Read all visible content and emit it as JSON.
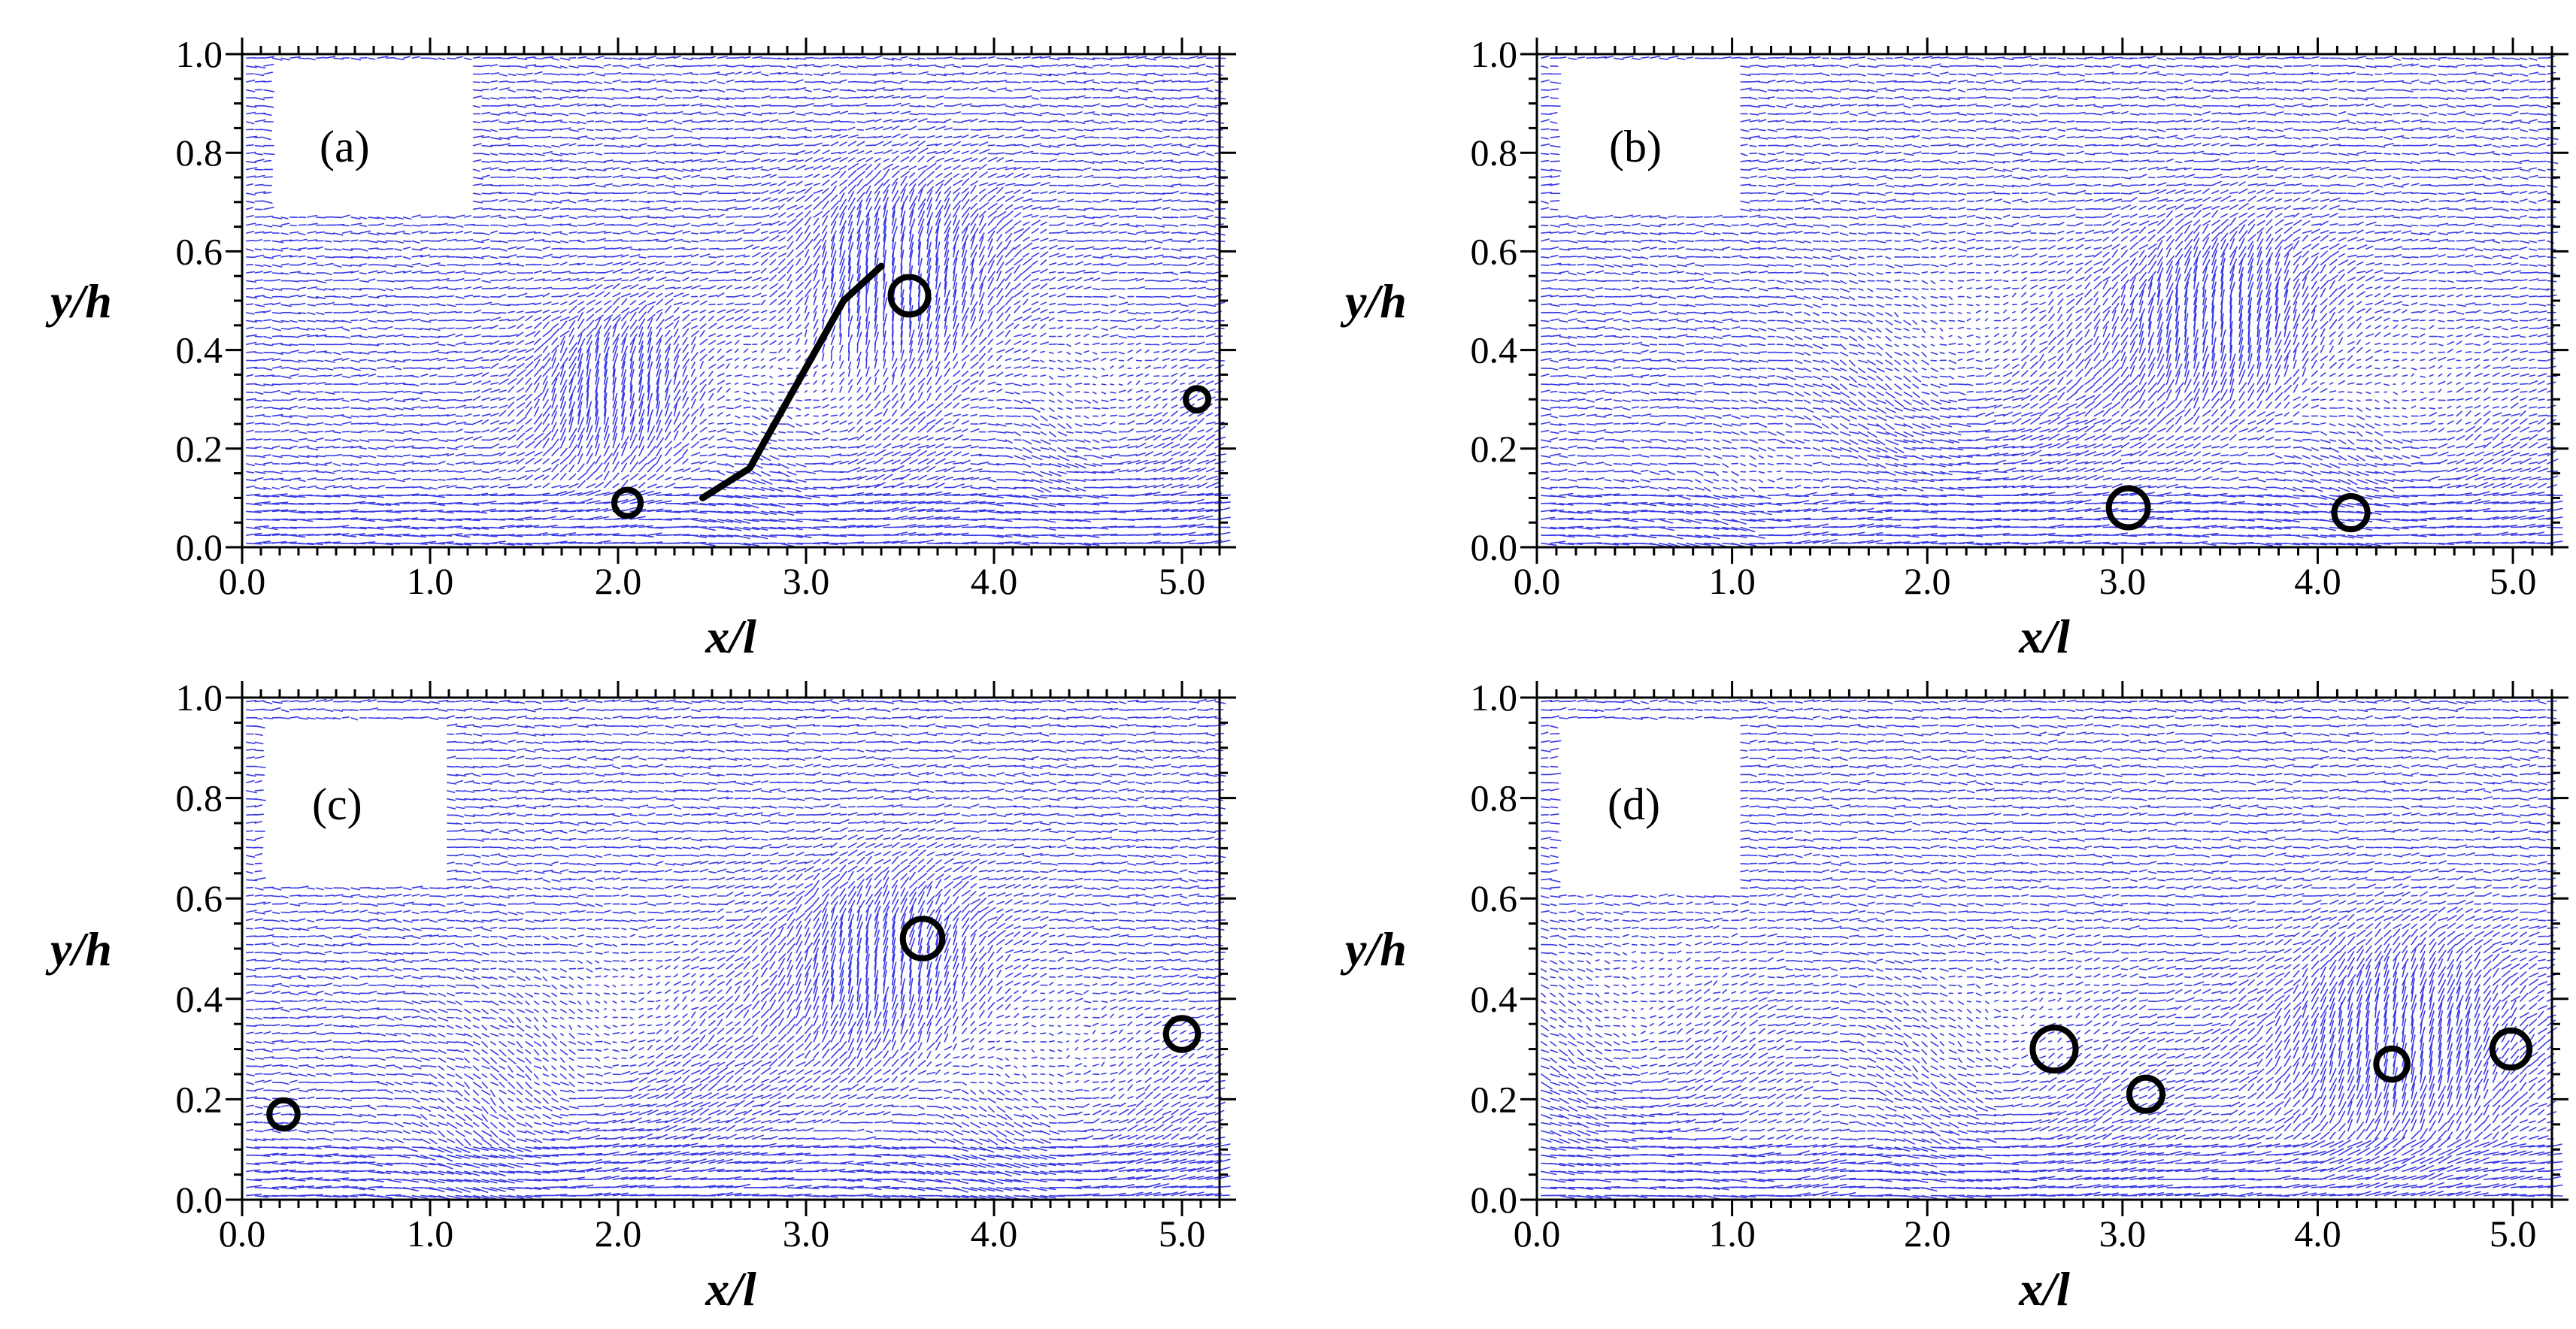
{
  "figure": {
    "background": "#ffffff",
    "vector_color": "#3a3ae6",
    "marker_color": "#000000"
  },
  "chart_data": [
    {
      "type": "vector-field",
      "panel_label": "(a)",
      "xlabel": "x/l",
      "ylabel": "y/h",
      "xlim": [
        0.0,
        5.2
      ],
      "ylim": [
        0.0,
        1.0
      ],
      "xticks": [
        "0.0",
        "1.0",
        "2.0",
        "3.0",
        "4.0",
        "5.0"
      ],
      "yticks": [
        "0.0",
        "0.2",
        "0.4",
        "0.6",
        "0.8",
        "1.0"
      ],
      "vortex_markers": [
        {
          "x": 2.05,
          "y": 0.09,
          "r": 0.14
        },
        {
          "x": 3.55,
          "y": 0.51,
          "r": 0.2
        },
        {
          "x": 5.08,
          "y": 0.3,
          "r": 0.12
        }
      ],
      "shear_layer_trace": [
        [
          2.45,
          0.1
        ],
        [
          2.7,
          0.16
        ],
        [
          2.95,
          0.33
        ],
        [
          3.2,
          0.5
        ],
        [
          3.4,
          0.57
        ]
      ],
      "field_features": [
        {
          "x": 2.0,
          "y": 0.3,
          "sigma": 0.35,
          "kind": "vertical"
        },
        {
          "x": 3.5,
          "y": 0.55,
          "sigma": 0.4,
          "kind": "vertical"
        },
        {
          "x": 3.1,
          "y": 0.2,
          "sigma": 0.45,
          "kind": "swirl"
        },
        {
          "x": 4.6,
          "y": 0.2,
          "sigma": 0.4,
          "kind": "swirl"
        }
      ]
    },
    {
      "type": "vector-field",
      "panel_label": "(b)",
      "xlabel": "x/l",
      "ylabel": "y/h",
      "xlim": [
        0.0,
        5.2
      ],
      "ylim": [
        0.0,
        1.0
      ],
      "xticks": [
        "0.0",
        "1.0",
        "2.0",
        "3.0",
        "4.0",
        "5.0"
      ],
      "yticks": [
        "0.0",
        "0.2",
        "0.4",
        "0.6",
        "0.8",
        "1.0"
      ],
      "vortex_markers": [
        {
          "x": 3.03,
          "y": 0.08,
          "r": 0.2
        },
        {
          "x": 4.17,
          "y": 0.07,
          "r": 0.17
        }
      ],
      "field_features": [
        {
          "x": 2.2,
          "y": 0.3,
          "sigma": 0.45,
          "kind": "swirl"
        },
        {
          "x": 3.5,
          "y": 0.45,
          "sigma": 0.4,
          "kind": "vertical"
        },
        {
          "x": 4.5,
          "y": 0.2,
          "sigma": 0.4,
          "kind": "swirl"
        },
        {
          "x": 1.2,
          "y": 0.05,
          "sigma": 0.3,
          "kind": "swirl"
        }
      ]
    },
    {
      "type": "vector-field",
      "panel_label": "(c)",
      "xlabel": "x/l",
      "ylabel": "y/h",
      "xlim": [
        0.0,
        5.2
      ],
      "ylim": [
        0.0,
        1.0
      ],
      "xticks": [
        "0.0",
        "1.0",
        "2.0",
        "3.0",
        "4.0",
        "5.0"
      ],
      "yticks": [
        "0.0",
        "0.2",
        "0.4",
        "0.6",
        "0.8",
        "1.0"
      ],
      "vortex_markers": [
        {
          "x": 0.22,
          "y": 0.17,
          "r": 0.15
        },
        {
          "x": 3.62,
          "y": 0.52,
          "r": 0.21
        },
        {
          "x": 5.0,
          "y": 0.33,
          "r": 0.17
        }
      ],
      "field_features": [
        {
          "x": 2.0,
          "y": 0.25,
          "sigma": 0.45,
          "kind": "swirl"
        },
        {
          "x": 3.4,
          "y": 0.45,
          "sigma": 0.4,
          "kind": "vertical"
        },
        {
          "x": 4.4,
          "y": 0.15,
          "sigma": 0.45,
          "kind": "swirl"
        },
        {
          "x": 1.5,
          "y": 0.08,
          "sigma": 0.35,
          "kind": "swirl"
        }
      ]
    },
    {
      "type": "vector-field",
      "panel_label": "(d)",
      "xlabel": "x/l",
      "ylabel": "y/h",
      "xlim": [
        0.0,
        5.2
      ],
      "ylim": [
        0.0,
        1.0
      ],
      "xticks": [
        "0.0",
        "1.0",
        "2.0",
        "3.0",
        "4.0",
        "5.0"
      ],
      "yticks": [
        "0.0",
        "0.2",
        "0.4",
        "0.6",
        "0.8",
        "1.0"
      ],
      "vortex_markers": [
        {
          "x": 2.65,
          "y": 0.3,
          "r": 0.22
        },
        {
          "x": 3.12,
          "y": 0.21,
          "r": 0.17
        },
        {
          "x": 4.38,
          "y": 0.27,
          "r": 0.16
        },
        {
          "x": 4.99,
          "y": 0.3,
          "r": 0.19
        }
      ],
      "field_features": [
        {
          "x": 0.5,
          "y": 0.25,
          "sigma": 0.45,
          "kind": "swirl"
        },
        {
          "x": 2.4,
          "y": 0.2,
          "sigma": 0.45,
          "kind": "swirl"
        },
        {
          "x": 4.4,
          "y": 0.3,
          "sigma": 0.45,
          "kind": "vertical"
        },
        {
          "x": 1.2,
          "y": 0.05,
          "sigma": 0.3,
          "kind": "swirl"
        }
      ]
    }
  ]
}
